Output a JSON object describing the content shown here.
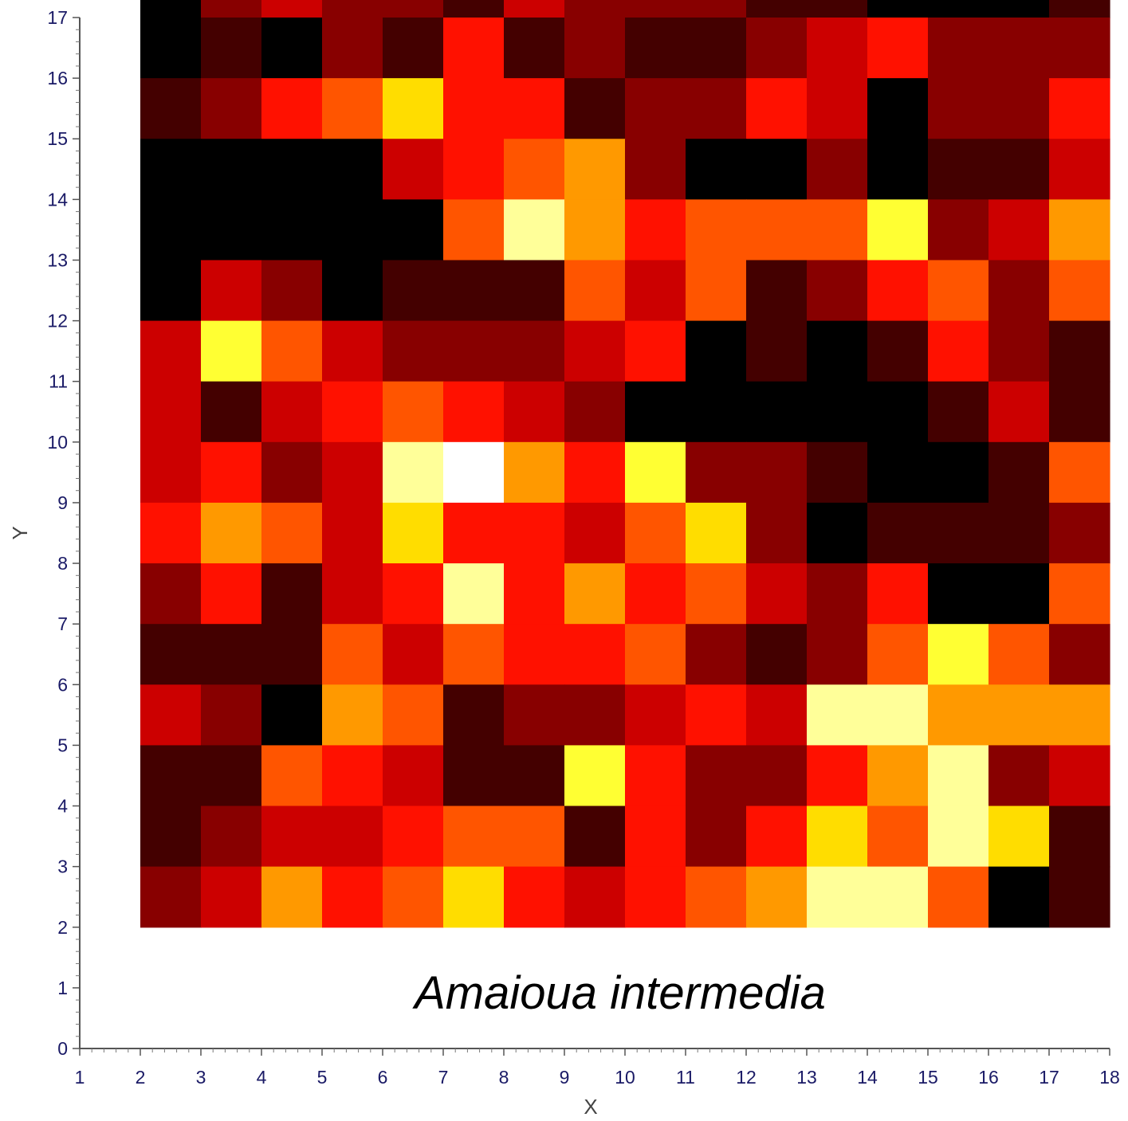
{
  "chart_data": {
    "type": "heatmap",
    "title": "",
    "annotation": "Amaioua intermedia",
    "xlabel": "X",
    "ylabel": "Y",
    "xlim": [
      1,
      18
    ],
    "ylim": [
      0,
      17
    ],
    "x_ticks": [
      1,
      2,
      3,
      4,
      5,
      6,
      7,
      8,
      9,
      10,
      11,
      12,
      13,
      14,
      15,
      16,
      17,
      18
    ],
    "y_ticks": [
      0,
      1,
      2,
      3,
      4,
      5,
      6,
      7,
      8,
      9,
      10,
      11,
      12,
      13,
      14,
      15,
      16,
      17
    ],
    "grid": false,
    "legend": "none",
    "colormap": "hot",
    "value_range": [
      0,
      10
    ],
    "grid_origin": {
      "x": 2,
      "y": 2
    },
    "cell_size": {
      "x": 1,
      "y": 1
    },
    "rows_top_to_bottom": [
      [
        0,
        2,
        3,
        2,
        2,
        1,
        3,
        2,
        2,
        2,
        1,
        1,
        0,
        0,
        0,
        1
      ],
      [
        0,
        1,
        0,
        2,
        1,
        4,
        1,
        2,
        1,
        1,
        2,
        3,
        4,
        2,
        2,
        2
      ],
      [
        1,
        2,
        4,
        5,
        7,
        4,
        4,
        1,
        2,
        2,
        4,
        3,
        0,
        2,
        2,
        4
      ],
      [
        0,
        0,
        0,
        0,
        3,
        4,
        5,
        6,
        2,
        0,
        0,
        2,
        0,
        1,
        1,
        3
      ],
      [
        0,
        0,
        0,
        0,
        0,
        5,
        9,
        6,
        4,
        5,
        5,
        5,
        8,
        2,
        3,
        6
      ],
      [
        0,
        3,
        2,
        0,
        1,
        1,
        1,
        5,
        3,
        5,
        1,
        2,
        4,
        5,
        2,
        5
      ],
      [
        3,
        8,
        5,
        3,
        2,
        2,
        2,
        3,
        4,
        0,
        1,
        0,
        1,
        4,
        2,
        1
      ],
      [
        3,
        1,
        3,
        4,
        5,
        4,
        3,
        2,
        0,
        0,
        0,
        0,
        0,
        1,
        3,
        1
      ],
      [
        3,
        4,
        2,
        3,
        9,
        10,
        6,
        4,
        8,
        2,
        2,
        1,
        0,
        0,
        1,
        5
      ],
      [
        4,
        6,
        5,
        3,
        7,
        4,
        4,
        3,
        5,
        7,
        2,
        0,
        1,
        1,
        1,
        2
      ],
      [
        2,
        4,
        1,
        3,
        4,
        9,
        4,
        6,
        4,
        5,
        3,
        2,
        4,
        0,
        0,
        5
      ],
      [
        1,
        1,
        1,
        5,
        3,
        5,
        4,
        4,
        5,
        2,
        1,
        2,
        5,
        8,
        5,
        2
      ],
      [
        3,
        2,
        0,
        6,
        5,
        1,
        2,
        2,
        3,
        4,
        3,
        9,
        9,
        6,
        6,
        6
      ],
      [
        1,
        1,
        5,
        4,
        3,
        1,
        1,
        8,
        4,
        2,
        2,
        4,
        6,
        9,
        2,
        3
      ],
      [
        1,
        2,
        3,
        3,
        4,
        5,
        5,
        1,
        4,
        2,
        4,
        7,
        5,
        9,
        7,
        1
      ],
      [
        2,
        3,
        6,
        4,
        5,
        7,
        4,
        3,
        4,
        5,
        6,
        9,
        9,
        5,
        0,
        1
      ]
    ]
  }
}
